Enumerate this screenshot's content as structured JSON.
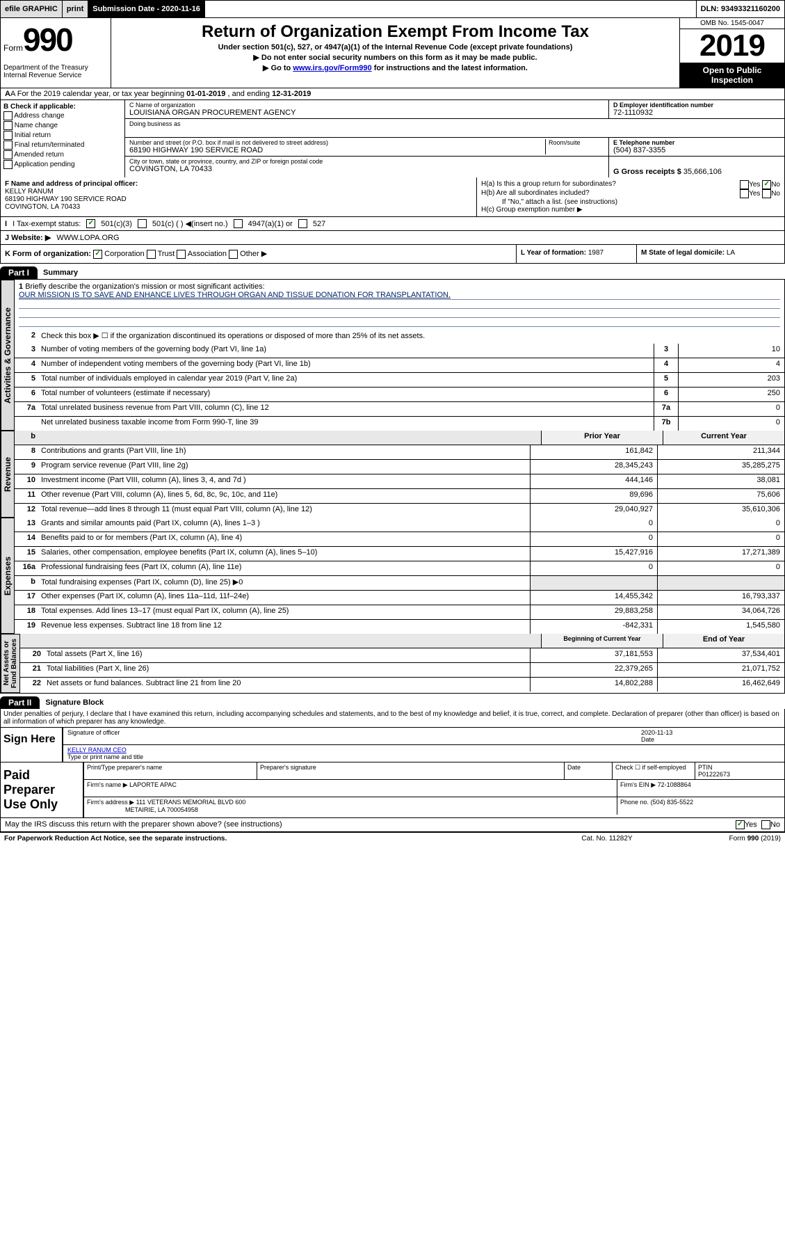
{
  "topbar": {
    "efile": "efile GRAPHIC",
    "print": "print",
    "sub_label": "Submission Date - 2020-11-16",
    "dln": "DLN: 93493321160200"
  },
  "header": {
    "form_prefix": "Form",
    "form_no": "990",
    "dept": "Department of the Treasury\nInternal Revenue Service",
    "title": "Return of Organization Exempt From Income Tax",
    "sub1": "Under section 501(c), 527, or 4947(a)(1) of the Internal Revenue Code (except private foundations)",
    "sub2": "▶ Do not enter social security numbers on this form as it may be made public.",
    "sub3_prefix": "▶ Go to ",
    "sub3_link": "www.irs.gov/Form990",
    "sub3_suffix": " for instructions and the latest information.",
    "omb": "OMB No. 1545-0047",
    "year": "2019",
    "public1": "Open to Public",
    "public2": "Inspection"
  },
  "rowA": {
    "label": "A For the 2019 calendar year, or tax year beginning ",
    "begin": "01-01-2019",
    "mid": " , and ending ",
    "end": "12-31-2019"
  },
  "boxB": {
    "title": "B Check if applicable:",
    "opts": [
      "Address change",
      "Name change",
      "Initial return",
      "Final return/terminated",
      "Amended return",
      "Application pending"
    ]
  },
  "boxC": {
    "name_label": "C Name of organization",
    "name": "LOUISIANA ORGAN PROCUREMENT AGENCY",
    "dba_label": "Doing business as",
    "addr_label": "Number and street (or P.O. box if mail is not delivered to street address)",
    "addr": "68190 HIGHWAY 190 SERVICE ROAD",
    "room_label": "Room/suite",
    "city_label": "City or town, state or province, country, and ZIP or foreign postal code",
    "city": "COVINGTON, LA  70433"
  },
  "boxD": {
    "label": "D Employer identification number",
    "val": "72-1110932"
  },
  "boxE": {
    "label": "E Telephone number",
    "val": "(504) 837-3355"
  },
  "boxG": {
    "label": "G Gross receipts $",
    "val": "35,666,106"
  },
  "boxF": {
    "label": "F Name and address of principal officer:",
    "name": "KELLY RANUM",
    "addr1": "68190 HIGHWAY 190 SERVICE ROAD",
    "addr2": "COVINGTON, LA  70433"
  },
  "boxH": {
    "a": "H(a) Is this a group return for subordinates?",
    "b": "H(b) Are all subordinates included?",
    "note": "If \"No,\" attach a list. (see instructions)",
    "c": "H(c) Group exemption number ▶"
  },
  "rowI": {
    "label": "I Tax-exempt status:",
    "c1": "501(c)(3)",
    "c2": "501(c) (  ) ◀(insert no.)",
    "c3": "4947(a)(1) or",
    "c4": "527"
  },
  "rowJ": {
    "label": "J Website: ▶",
    "val": "WWW.LOPA.ORG"
  },
  "rowK": {
    "label": "K Form of organization:",
    "opts": [
      "Corporation",
      "Trust",
      "Association",
      "Other ▶"
    ]
  },
  "rowL": {
    "label": "L Year of formation:",
    "val": "1987"
  },
  "rowM": {
    "label": "M State of legal domicile:",
    "val": "LA"
  },
  "part1": {
    "tab": "Part I",
    "title": "Summary"
  },
  "summary": {
    "line1": {
      "num": "1",
      "desc": "Briefly describe the organization's mission or most significant activities:"
    },
    "mission": "OUR MISSION IS TO SAVE AND ENHANCE LIVES THROUGH ORGAN AND TISSUE DONATION FOR TRANSPLANTATION.",
    "line2": {
      "num": "2",
      "desc": "Check this box ▶ ☐ if the organization discontinued its operations or disposed of more than 25% of its net assets."
    },
    "rows": [
      {
        "num": "3",
        "desc": "Number of voting members of the governing body (Part VI, line 1a)",
        "box": "3",
        "val": "10"
      },
      {
        "num": "4",
        "desc": "Number of independent voting members of the governing body (Part VI, line 1b)",
        "box": "4",
        "val": "4"
      },
      {
        "num": "5",
        "desc": "Total number of individuals employed in calendar year 2019 (Part V, line 2a)",
        "box": "5",
        "val": "203"
      },
      {
        "num": "6",
        "desc": "Total number of volunteers (estimate if necessary)",
        "box": "6",
        "val": "250"
      },
      {
        "num": "7a",
        "desc": "Total unrelated business revenue from Part VIII, column (C), line 12",
        "box": "7a",
        "val": "0"
      },
      {
        "num": "",
        "desc": "Net unrelated business taxable income from Form 990-T, line 39",
        "box": "7b",
        "val": "0"
      }
    ],
    "hdr_b": "b",
    "col_hdr1": "Prior Year",
    "col_hdr2": "Current Year",
    "revenue_rows": [
      {
        "num": "8",
        "desc": "Contributions and grants (Part VIII, line 1h)",
        "c1": "161,842",
        "c2": "211,344"
      },
      {
        "num": "9",
        "desc": "Program service revenue (Part VIII, line 2g)",
        "c1": "28,345,243",
        "c2": "35,285,275"
      },
      {
        "num": "10",
        "desc": "Investment income (Part VIII, column (A), lines 3, 4, and 7d )",
        "c1": "444,146",
        "c2": "38,081"
      },
      {
        "num": "11",
        "desc": "Other revenue (Part VIII, column (A), lines 5, 6d, 8c, 9c, 10c, and 11e)",
        "c1": "89,696",
        "c2": "75,606"
      },
      {
        "num": "12",
        "desc": "Total revenue—add lines 8 through 11 (must equal Part VIII, column (A), line 12)",
        "c1": "29,040,927",
        "c2": "35,610,306"
      }
    ],
    "expense_rows": [
      {
        "num": "13",
        "desc": "Grants and similar amounts paid (Part IX, column (A), lines 1–3 )",
        "c1": "0",
        "c2": "0"
      },
      {
        "num": "14",
        "desc": "Benefits paid to or for members (Part IX, column (A), line 4)",
        "c1": "0",
        "c2": "0"
      },
      {
        "num": "15",
        "desc": "Salaries, other compensation, employee benefits (Part IX, column (A), lines 5–10)",
        "c1": "15,427,916",
        "c2": "17,271,389"
      },
      {
        "num": "16a",
        "desc": "Professional fundraising fees (Part IX, column (A), line 11e)",
        "c1": "0",
        "c2": "0"
      },
      {
        "num": "b",
        "desc": "Total fundraising expenses (Part IX, column (D), line 25) ▶0",
        "c1": "",
        "c2": "",
        "gray": true
      },
      {
        "num": "17",
        "desc": "Other expenses (Part IX, column (A), lines 11a–11d, 11f–24e)",
        "c1": "14,455,342",
        "c2": "16,793,337"
      },
      {
        "num": "18",
        "desc": "Total expenses. Add lines 13–17 (must equal Part IX, column (A), line 25)",
        "c1": "29,883,258",
        "c2": "34,064,726"
      },
      {
        "num": "19",
        "desc": "Revenue less expenses. Subtract line 18 from line 12",
        "c1": "-842,331",
        "c2": "1,545,580"
      }
    ],
    "col_hdr3": "Beginning of Current Year",
    "col_hdr4": "End of Year",
    "asset_rows": [
      {
        "num": "20",
        "desc": "Total assets (Part X, line 16)",
        "c1": "37,181,553",
        "c2": "37,534,401"
      },
      {
        "num": "21",
        "desc": "Total liabilities (Part X, line 26)",
        "c1": "22,379,265",
        "c2": "21,071,752"
      },
      {
        "num": "22",
        "desc": "Net assets or fund balances. Subtract line 21 from line 20",
        "c1": "14,802,288",
        "c2": "16,462,649"
      }
    ],
    "vtabs": {
      "gov": "Activities & Governance",
      "rev": "Revenue",
      "exp": "Expenses",
      "net": "Net Assets or\nFund Balances"
    }
  },
  "part2": {
    "tab": "Part II",
    "title": "Signature Block"
  },
  "perjury": "Under penalties of perjury, I declare that I have examined this return, including accompanying schedules and statements, and to the best of my knowledge and belief, it is true, correct, and complete. Declaration of preparer (other than officer) is based on all information of which preparer has any knowledge.",
  "sign": {
    "label": "Sign Here",
    "sig_of": "Signature of officer",
    "date_label": "Date",
    "date": "2020-11-13",
    "name": "KELLY RANUM  CEO",
    "name_label": "Type or print name and title"
  },
  "paid": {
    "label": "Paid Preparer Use Only",
    "h1": "Print/Type preparer's name",
    "h2": "Preparer's signature",
    "h3": "Date",
    "h4": "Check ☐ if self-employed",
    "h5": "PTIN",
    "ptin": "P01222673",
    "firm_name_label": "Firm's name   ▶",
    "firm_name": "LAPORTE APAC",
    "firm_ein_label": "Firm's EIN ▶",
    "firm_ein": "72-1088864",
    "firm_addr_label": "Firm's address ▶",
    "firm_addr1": "111 VETERANS MEMORIAL BLVD 600",
    "firm_addr2": "METAIRIE, LA  700054958",
    "phone_label": "Phone no.",
    "phone": "(504) 835-5522"
  },
  "discuss": "May the IRS discuss this return with the preparer shown above? (see instructions)",
  "footer": {
    "pra": "For Paperwork Reduction Act Notice, see the separate instructions.",
    "cat": "Cat. No. 11282Y",
    "form": "Form 990 (2019)"
  },
  "yes": "Yes",
  "no": "No"
}
